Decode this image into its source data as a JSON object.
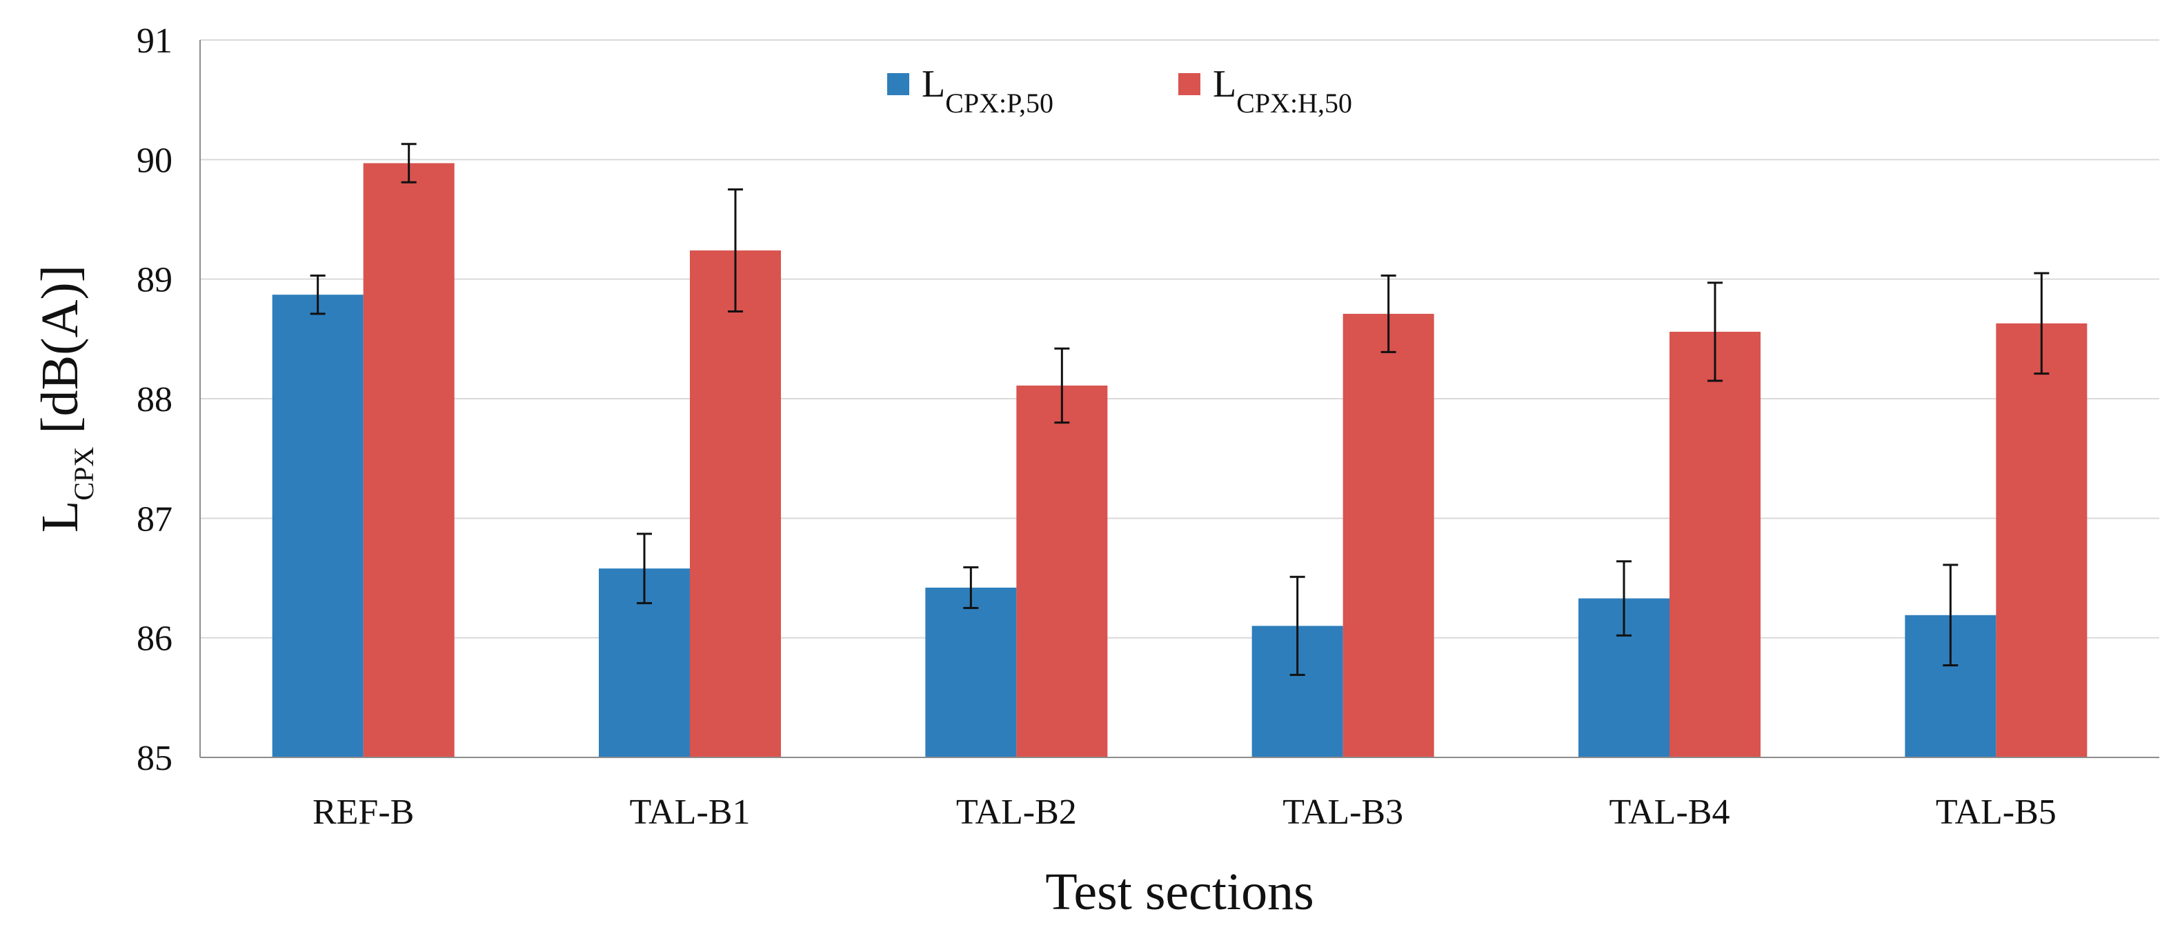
{
  "chart_data": {
    "type": "bar",
    "title": "",
    "xlabel": "Test sections",
    "ylabel": {
      "main": "L",
      "sub": "CPX",
      "rest": " [dB(A)]"
    },
    "ylim": [
      85,
      91
    ],
    "yticks": [
      "85",
      "86",
      "87",
      "88",
      "89",
      "90",
      "91"
    ],
    "grid": true,
    "legend_position": "top-center",
    "categories": [
      "REF-B",
      "TAL-B1",
      "TAL-B2",
      "TAL-B3",
      "TAL-B4",
      "TAL-B5"
    ],
    "series": [
      {
        "name": "L_CPX:P,50",
        "label_main": "L",
        "label_sub": "CPX:P,50",
        "color": "#2e7ebc",
        "values": [
          88.87,
          86.58,
          86.42,
          86.1,
          86.33,
          86.19
        ],
        "errors": [
          0.16,
          0.29,
          0.17,
          0.41,
          0.31,
          0.42
        ]
      },
      {
        "name": "L_CPX:H,50",
        "label_main": "L",
        "label_sub": "CPX:H,50",
        "color": "#d9534f",
        "values": [
          89.97,
          89.24,
          88.11,
          88.71,
          88.56,
          88.63
        ],
        "errors": [
          0.16,
          0.51,
          0.31,
          0.32,
          0.41,
          0.42
        ]
      }
    ]
  }
}
